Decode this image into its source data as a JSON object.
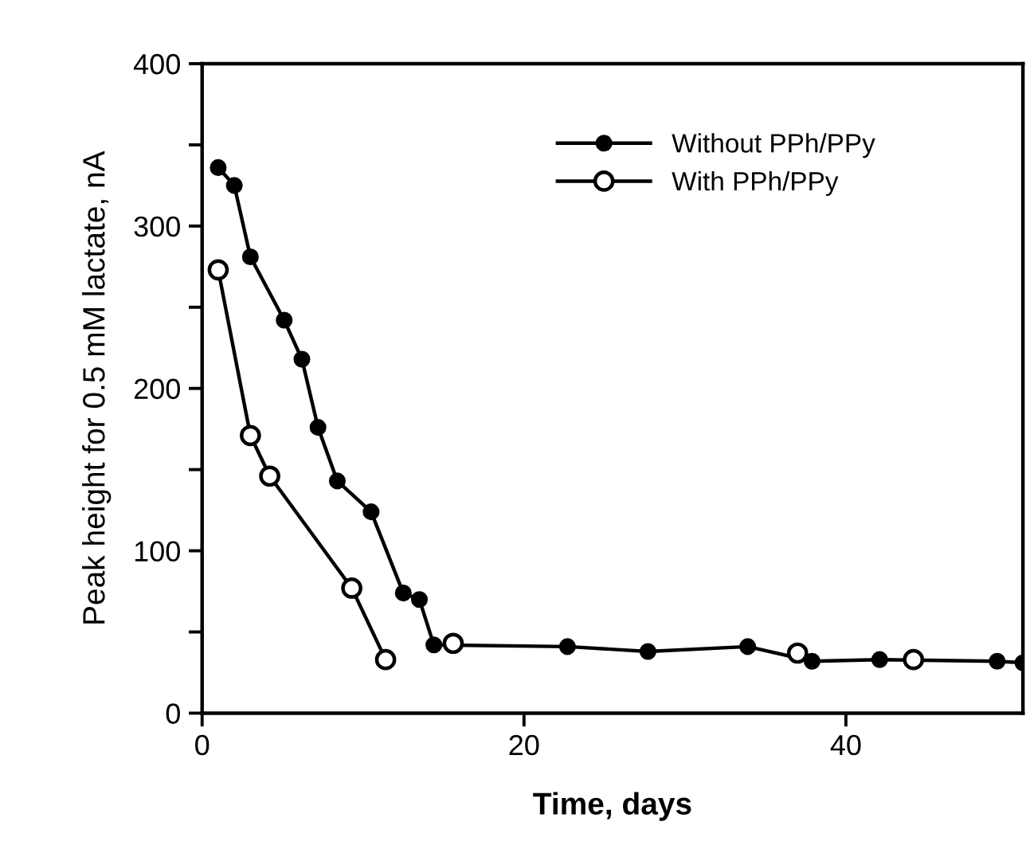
{
  "chart_data": {
    "type": "line",
    "xlabel": "Time, days",
    "ylabel": "Peak height for 0.5 mM lactate, nA",
    "series": [
      {
        "name": "Without PPh/PPy",
        "color": "#000000",
        "marker": "circle",
        "x": [
          1,
          2,
          3,
          5.1,
          6.2,
          7.2,
          8.4,
          10.5,
          12.5,
          13.5,
          14.4,
          22.7,
          27.7,
          33.9,
          37.9,
          42.1,
          49.4,
          51
        ],
        "values": [
          336,
          325,
          281,
          242,
          218,
          176,
          143,
          124,
          74,
          70,
          42,
          41,
          38,
          41,
          32,
          33,
          32,
          31
        ]
      },
      {
        "name": "With PPh/PPy",
        "color": "#000000",
        "marker": "circle",
        "x": [
          1,
          3,
          4.2,
          9.3,
          11.4,
          13,
          15.6,
          25,
          37,
          40,
          44.2
        ],
        "values": [
          273,
          171,
          146,
          77,
          33,
          null,
          43,
          null,
          37,
          null,
          33
        ]
      }
    ],
    "xlim": [
      0,
      51
    ],
    "xticks": [
      0,
      20,
      40
    ],
    "ylim": [
      0,
      400
    ],
    "yticks": [
      0,
      {
        "value": 50,
        "label": null
      },
      100,
      {
        "value": 150,
        "label": null
      },
      200,
      {
        "value": 250,
        "label": null
      },
      300,
      {
        "value": 350,
        "label": null
      },
      400
    ],
    "grid": false,
    "legend": "top right",
    "line_style": "solid"
  }
}
